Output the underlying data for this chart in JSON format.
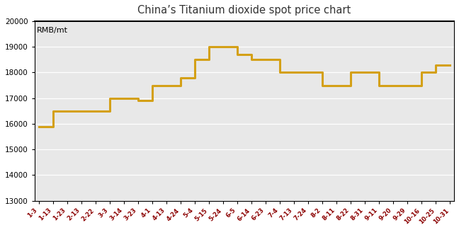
{
  "title": "China’s Titanium dioxide spot price chart",
  "ylabel": "RMB/mt",
  "line_color": "#D4A017",
  "line_width": 2.2,
  "background_color": "#E8E8E8",
  "title_color": "#333333",
  "tick_color": "#8B0000",
  "ylim": [
    13000,
    20000
  ],
  "yticks": [
    13000,
    14000,
    15000,
    16000,
    17000,
    18000,
    19000,
    20000
  ],
  "labels": [
    "1-3",
    "1-13",
    "1-23",
    "2-13",
    "2-22",
    "3-3",
    "3-14",
    "3-23",
    "4-1",
    "4-13",
    "4-24",
    "5-4",
    "5-15",
    "5-24",
    "6-5",
    "6-14",
    "6-23",
    "7-4",
    "7-13",
    "7-24",
    "8-2",
    "8-11",
    "8-22",
    "8-31",
    "9-11",
    "9-20",
    "9-29",
    "10-16",
    "10-25",
    "10-31"
  ],
  "values": [
    15900,
    16500,
    16500,
    16500,
    16500,
    17000,
    17000,
    16900,
    17500,
    17500,
    17800,
    18500,
    19000,
    19000,
    18700,
    18500,
    18500,
    18000,
    18000,
    18000,
    17500,
    17500,
    18000,
    18000,
    17500,
    17500,
    17500,
    18000,
    18300,
    18300
  ]
}
